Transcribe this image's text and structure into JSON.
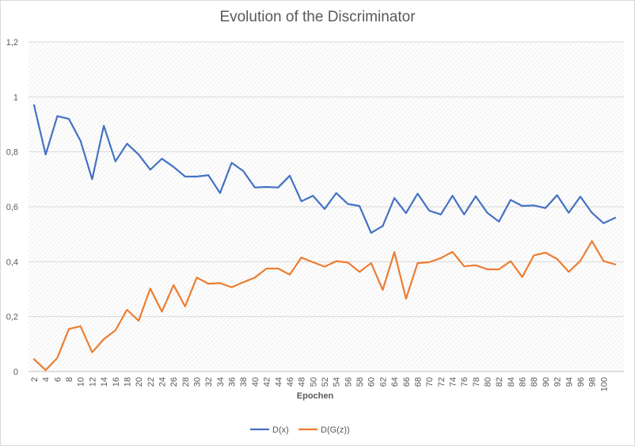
{
  "chart_data": {
    "type": "line",
    "title": "Evolution of the Discriminator",
    "xlabel": "Epochen",
    "ylabel": "",
    "ylim": [
      0,
      1.2
    ],
    "yticks": [
      "0",
      "0,2",
      "0,4",
      "0,6",
      "0,8",
      "1",
      "1,2"
    ],
    "ytick_values": [
      0,
      0.2,
      0.4,
      0.6,
      0.8,
      1.0,
      1.2
    ],
    "x": [
      2,
      4,
      6,
      8,
      10,
      12,
      14,
      16,
      18,
      20,
      22,
      24,
      26,
      28,
      30,
      32,
      34,
      36,
      38,
      40,
      42,
      44,
      46,
      48,
      50,
      52,
      54,
      56,
      58,
      60,
      62,
      64,
      66,
      68,
      70,
      72,
      74,
      76,
      78,
      80,
      82,
      84,
      86,
      88,
      90,
      92,
      94,
      96,
      98,
      100,
      102
    ],
    "xtick_labels": [
      "2",
      "4",
      "6",
      "8",
      "10",
      "12",
      "14",
      "16",
      "18",
      "20",
      "22",
      "24",
      "26",
      "28",
      "30",
      "32",
      "34",
      "36",
      "38",
      "40",
      "42",
      "44",
      "46",
      "48",
      "50",
      "52",
      "54",
      "56",
      "58",
      "60",
      "62",
      "64",
      "66",
      "68",
      "70",
      "72",
      "74",
      "76",
      "78",
      "80",
      "82",
      "84",
      "86",
      "88",
      "90",
      "92",
      "94",
      "96",
      "98",
      "100"
    ],
    "grid": true,
    "legend_position": "bottom",
    "series": [
      {
        "name": "D(x)",
        "color": "#4472c4",
        "values": [
          0.97,
          0.79,
          0.93,
          0.92,
          0.84,
          0.7,
          0.895,
          0.765,
          0.83,
          0.79,
          0.735,
          0.775,
          0.745,
          0.71,
          0.71,
          0.715,
          0.65,
          0.76,
          0.73,
          0.67,
          0.672,
          0.67,
          0.713,
          0.62,
          0.64,
          0.592,
          0.65,
          0.61,
          0.603,
          0.505,
          0.53,
          0.632,
          0.577,
          0.648,
          0.586,
          0.572,
          0.64,
          0.572,
          0.638,
          0.578,
          0.546,
          0.625,
          0.603,
          0.605,
          0.595,
          0.642,
          0.578,
          0.637,
          0.578,
          0.54,
          0.56
        ]
      },
      {
        "name": "D(G(z))",
        "color": "#ed7d31",
        "values": [
          0.045,
          0.005,
          0.05,
          0.155,
          0.165,
          0.07,
          0.118,
          0.15,
          0.225,
          0.185,
          0.302,
          0.218,
          0.315,
          0.237,
          0.342,
          0.32,
          0.322,
          0.307,
          0.325,
          0.342,
          0.375,
          0.375,
          0.353,
          0.415,
          0.398,
          0.382,
          0.402,
          0.397,
          0.363,
          0.395,
          0.297,
          0.435,
          0.265,
          0.395,
          0.398,
          0.413,
          0.436,
          0.383,
          0.387,
          0.372,
          0.372,
          0.402,
          0.344,
          0.423,
          0.433,
          0.41,
          0.363,
          0.403,
          0.475,
          0.402,
          0.39
        ]
      }
    ]
  }
}
